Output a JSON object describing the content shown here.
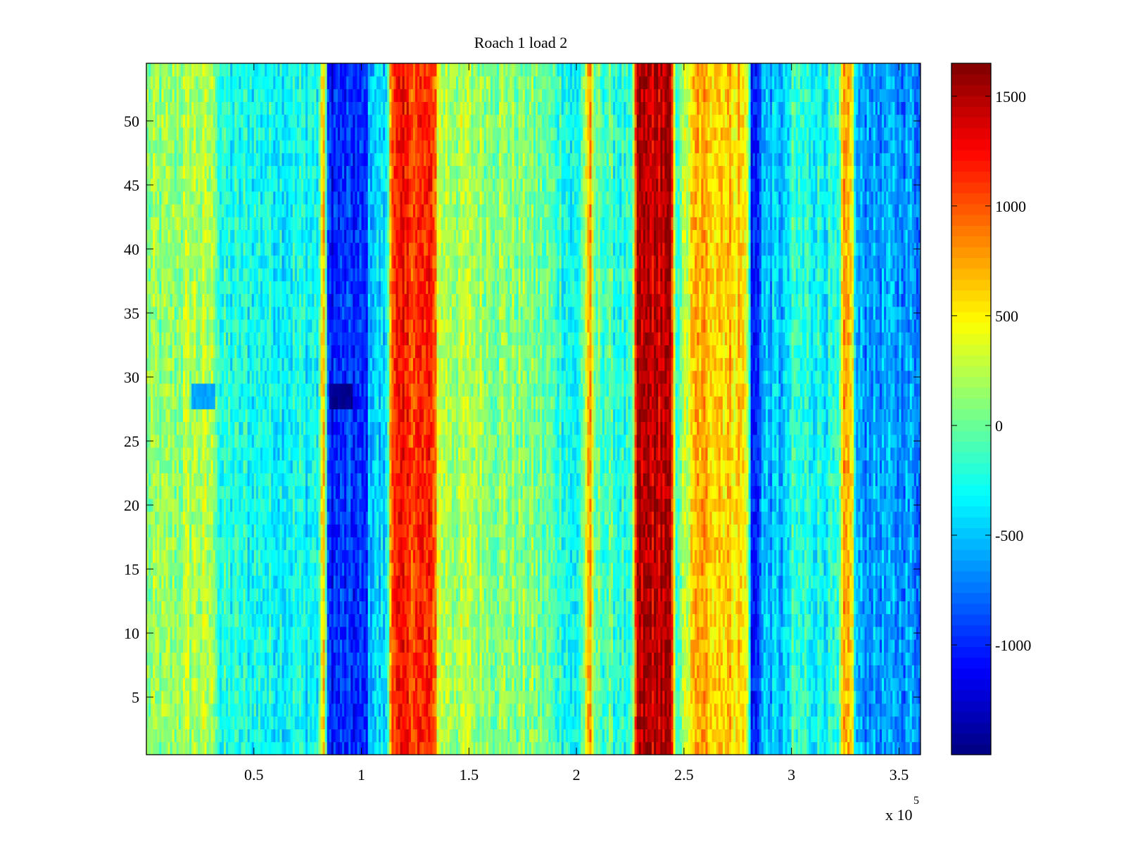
{
  "chart_data": {
    "type": "heatmap",
    "title": "Roach 1 load 2",
    "xlabel": "",
    "ylabel": "",
    "x_multiplier_label": {
      "base": "x 10",
      "exponent": "5"
    },
    "xlim": [
      0,
      3.6
    ],
    "ylim": [
      0.5,
      54.5
    ],
    "rows": 54,
    "xticks": [
      {
        "value": 0.5,
        "label": "0.5"
      },
      {
        "value": 1,
        "label": "1"
      },
      {
        "value": 1.5,
        "label": "1.5"
      },
      {
        "value": 2,
        "label": "2"
      },
      {
        "value": 2.5,
        "label": "2.5"
      },
      {
        "value": 3,
        "label": "3"
      },
      {
        "value": 3.5,
        "label": "3.5"
      }
    ],
    "yticks": [
      {
        "value": 5,
        "label": "5"
      },
      {
        "value": 10,
        "label": "10"
      },
      {
        "value": 15,
        "label": "15"
      },
      {
        "value": 20,
        "label": "20"
      },
      {
        "value": 25,
        "label": "25"
      },
      {
        "value": 30,
        "label": "30"
      },
      {
        "value": 35,
        "label": "35"
      },
      {
        "value": 40,
        "label": "40"
      },
      {
        "value": 45,
        "label": "45"
      },
      {
        "value": 50,
        "label": "50"
      }
    ],
    "colorbar": {
      "colormap": "jet",
      "clim": [
        -1500,
        1650
      ],
      "ticks": [
        {
          "value": 1500,
          "label": "1500"
        },
        {
          "value": 1000,
          "label": "1000"
        },
        {
          "value": 500,
          "label": "500"
        },
        {
          "value": 0,
          "label": "0"
        },
        {
          "value": -500,
          "label": "-500"
        },
        {
          "value": -1000,
          "label": "-1000"
        }
      ]
    },
    "column_profile": [
      {
        "x": 0.0,
        "value": 100
      },
      {
        "x": 0.1,
        "value": 100
      },
      {
        "x": 0.2,
        "value": 200
      },
      {
        "x": 0.32,
        "value": 200
      },
      {
        "x": 0.34,
        "value": -250
      },
      {
        "x": 0.8,
        "value": -300
      },
      {
        "x": 0.83,
        "value": 1000
      },
      {
        "x": 0.84,
        "value": -1000
      },
      {
        "x": 1.02,
        "value": -1000
      },
      {
        "x": 1.04,
        "value": -450
      },
      {
        "x": 1.12,
        "value": -450
      },
      {
        "x": 1.14,
        "value": 1150
      },
      {
        "x": 1.34,
        "value": 1100
      },
      {
        "x": 1.36,
        "value": 250
      },
      {
        "x": 1.6,
        "value": 150
      },
      {
        "x": 1.8,
        "value": 50
      },
      {
        "x": 1.95,
        "value": -200
      },
      {
        "x": 2.0,
        "value": -400
      },
      {
        "x": 2.04,
        "value": 200
      },
      {
        "x": 2.06,
        "value": 900
      },
      {
        "x": 2.08,
        "value": 0
      },
      {
        "x": 2.2,
        "value": -200
      },
      {
        "x": 2.26,
        "value": -300
      },
      {
        "x": 2.28,
        "value": 1450
      },
      {
        "x": 2.44,
        "value": 1450
      },
      {
        "x": 2.46,
        "value": -150
      },
      {
        "x": 2.52,
        "value": 350
      },
      {
        "x": 2.56,
        "value": 700
      },
      {
        "x": 2.76,
        "value": 600
      },
      {
        "x": 2.8,
        "value": 350
      },
      {
        "x": 2.81,
        "value": -1050
      },
      {
        "x": 2.84,
        "value": -1050
      },
      {
        "x": 2.86,
        "value": -550
      },
      {
        "x": 2.98,
        "value": -500
      },
      {
        "x": 3.0,
        "value": -200
      },
      {
        "x": 3.22,
        "value": -300
      },
      {
        "x": 3.24,
        "value": 650
      },
      {
        "x": 3.28,
        "value": 650
      },
      {
        "x": 3.3,
        "value": -600
      },
      {
        "x": 3.6,
        "value": -650
      }
    ],
    "anomaly_cells": [
      {
        "x_range": [
          0.21,
          0.32
        ],
        "y_range": [
          27.5,
          29.5
        ],
        "value": -600
      },
      {
        "x_range": [
          0.85,
          0.96
        ],
        "y_range": [
          27.5,
          29.5
        ],
        "value": -1450
      }
    ],
    "grid": false,
    "legend": "none"
  }
}
